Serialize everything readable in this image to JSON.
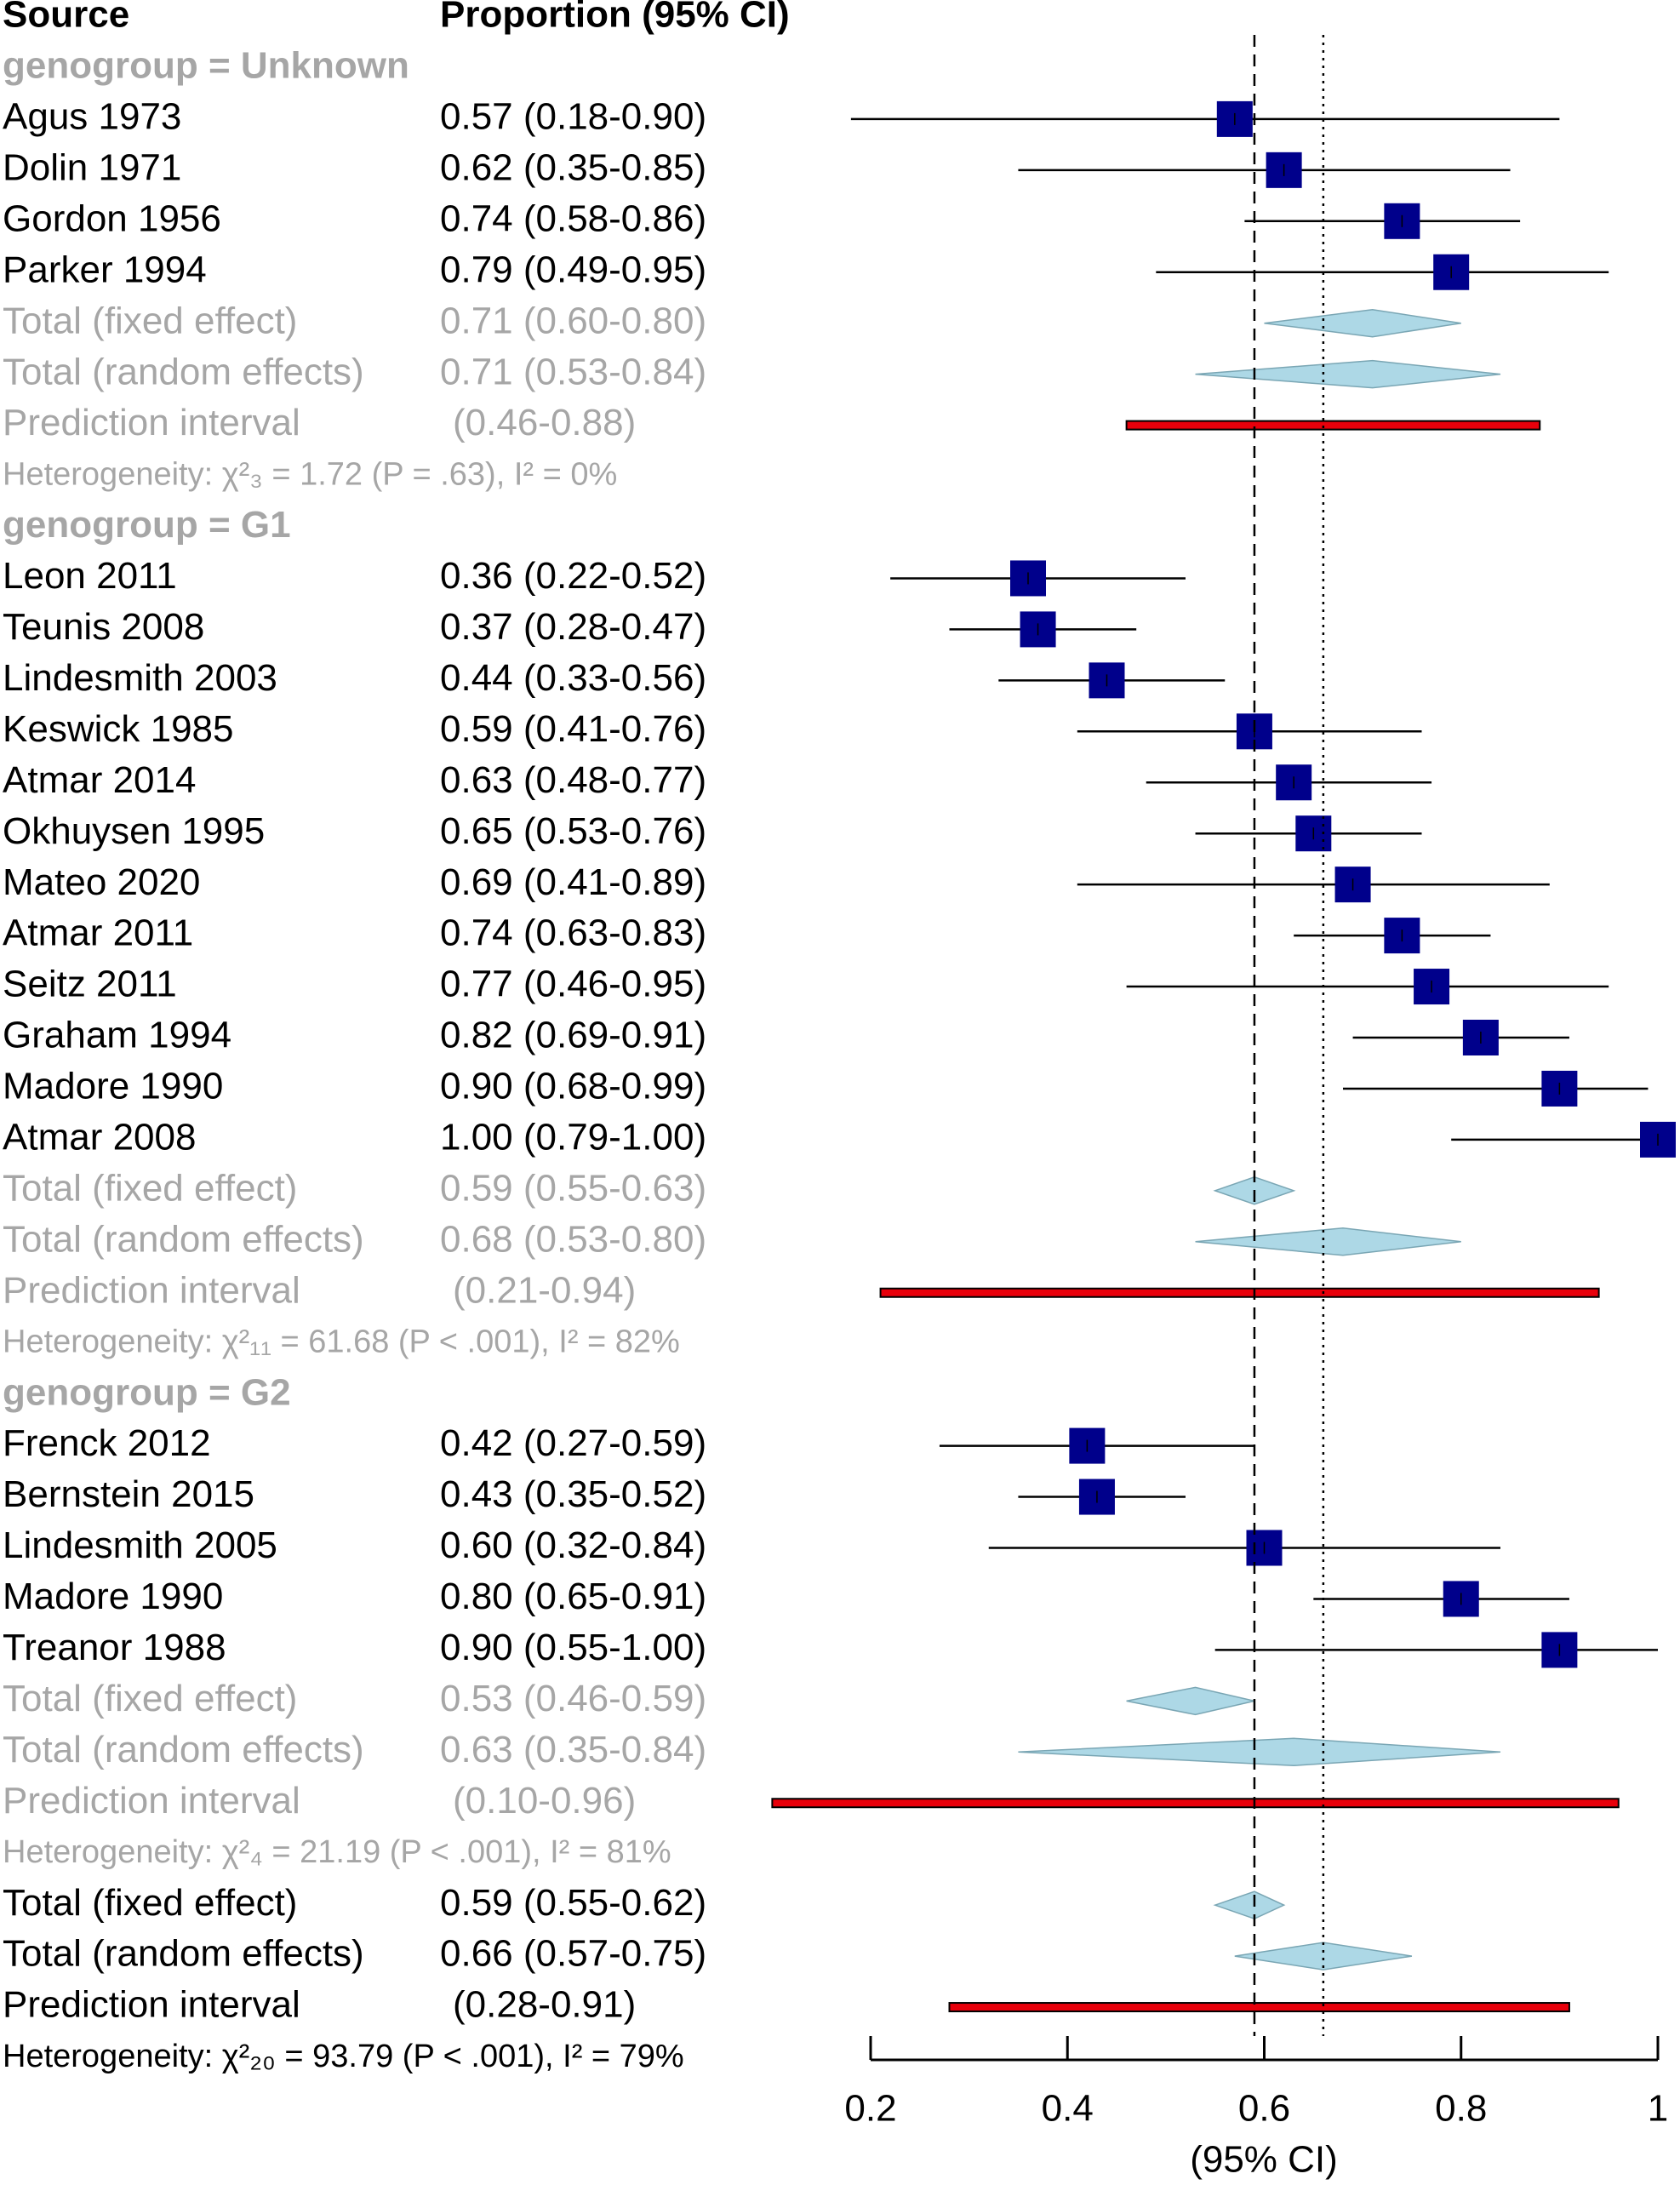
{
  "chart_data": {
    "type": "forest",
    "columns": [
      "Source",
      "Proportion (95% CI)"
    ],
    "axis_title": "(95% CI)",
    "xlim": [
      0.2,
      1
    ],
    "xticks": [
      0.2,
      0.4,
      0.6,
      0.8,
      1
    ],
    "square_color": "#00008b",
    "diamond_color": "#add8e6",
    "prediction_color": "#e8000b",
    "subgroup_text_color": "#a6a6a6",
    "groups": [
      {
        "label": "genogroup = Unknown",
        "studies": [
          {
            "name": "Agus 1973",
            "text": "0.57 (0.18-0.90)",
            "estimate": 0.57,
            "lower": 0.18,
            "upper": 0.9
          },
          {
            "name": "Dolin 1971",
            "text": "0.62 (0.35-0.85)",
            "estimate": 0.62,
            "lower": 0.35,
            "upper": 0.85
          },
          {
            "name": "Gordon 1956",
            "text": "0.74 (0.58-0.86)",
            "estimate": 0.74,
            "lower": 0.58,
            "upper": 0.86
          },
          {
            "name": "Parker 1994",
            "text": "0.79 (0.49-0.95)",
            "estimate": 0.79,
            "lower": 0.49,
            "upper": 0.95
          }
        ],
        "fixed": {
          "name": "Total (fixed effect)",
          "text": "0.71 (0.60-0.80)",
          "estimate": 0.71,
          "lower": 0.6,
          "upper": 0.8
        },
        "random": {
          "name": "Total (random effects)",
          "text": "0.71 (0.53-0.84)",
          "estimate": 0.71,
          "lower": 0.53,
          "upper": 0.84
        },
        "prediction": {
          "name": "Prediction interval",
          "text": "(0.46-0.88)",
          "lower": 0.46,
          "upper": 0.88
        },
        "heterogeneity": "Heterogeneity: χ²₃ = 1.72 (P = .63), I² = 0%"
      },
      {
        "label": "genogroup = G1",
        "studies": [
          {
            "name": "Leon 2011",
            "text": "0.36 (0.22-0.52)",
            "estimate": 0.36,
            "lower": 0.22,
            "upper": 0.52
          },
          {
            "name": "Teunis 2008",
            "text": "0.37 (0.28-0.47)",
            "estimate": 0.37,
            "lower": 0.28,
            "upper": 0.47
          },
          {
            "name": "Lindesmith 2003",
            "text": "0.44 (0.33-0.56)",
            "estimate": 0.44,
            "lower": 0.33,
            "upper": 0.56
          },
          {
            "name": "Keswick 1985",
            "text": "0.59 (0.41-0.76)",
            "estimate": 0.59,
            "lower": 0.41,
            "upper": 0.76
          },
          {
            "name": "Atmar 2014",
            "text": "0.63 (0.48-0.77)",
            "estimate": 0.63,
            "lower": 0.48,
            "upper": 0.77
          },
          {
            "name": "Okhuysen 1995",
            "text": "0.65 (0.53-0.76)",
            "estimate": 0.65,
            "lower": 0.53,
            "upper": 0.76
          },
          {
            "name": "Mateo 2020",
            "text": "0.69 (0.41-0.89)",
            "estimate": 0.69,
            "lower": 0.41,
            "upper": 0.89
          },
          {
            "name": "Atmar 2011",
            "text": "0.74 (0.63-0.83)",
            "estimate": 0.74,
            "lower": 0.63,
            "upper": 0.83
          },
          {
            "name": "Seitz 2011",
            "text": "0.77 (0.46-0.95)",
            "estimate": 0.77,
            "lower": 0.46,
            "upper": 0.95
          },
          {
            "name": "Graham 1994",
            "text": "0.82 (0.69-0.91)",
            "estimate": 0.82,
            "lower": 0.69,
            "upper": 0.91
          },
          {
            "name": "Madore 1990",
            "text": "0.90 (0.68-0.99)",
            "estimate": 0.9,
            "lower": 0.68,
            "upper": 0.99
          },
          {
            "name": "Atmar 2008",
            "text": "1.00 (0.79-1.00)",
            "estimate": 1.0,
            "lower": 0.79,
            "upper": 1.0
          }
        ],
        "fixed": {
          "name": "Total (fixed effect)",
          "text": "0.59 (0.55-0.63)",
          "estimate": 0.59,
          "lower": 0.55,
          "upper": 0.63
        },
        "random": {
          "name": "Total (random effects)",
          "text": "0.68 (0.53-0.80)",
          "estimate": 0.68,
          "lower": 0.53,
          "upper": 0.8
        },
        "prediction": {
          "name": "Prediction interval",
          "text": "(0.21-0.94)",
          "lower": 0.21,
          "upper": 0.94
        },
        "heterogeneity": "Heterogeneity: χ²₁₁ = 61.68 (P < .001), I² = 82%"
      },
      {
        "label": "genogroup = G2",
        "studies": [
          {
            "name": "Frenck 2012",
            "text": "0.42 (0.27-0.59)",
            "estimate": 0.42,
            "lower": 0.27,
            "upper": 0.59
          },
          {
            "name": "Bernstein 2015",
            "text": "0.43 (0.35-0.52)",
            "estimate": 0.43,
            "lower": 0.35,
            "upper": 0.52
          },
          {
            "name": "Lindesmith 2005",
            "text": "0.60 (0.32-0.84)",
            "estimate": 0.6,
            "lower": 0.32,
            "upper": 0.84
          },
          {
            "name": "Madore 1990",
            "text": "0.80 (0.65-0.91)",
            "estimate": 0.8,
            "lower": 0.65,
            "upper": 0.91
          },
          {
            "name": "Treanor 1988",
            "text": "0.90 (0.55-1.00)",
            "estimate": 0.9,
            "lower": 0.55,
            "upper": 1.0
          }
        ],
        "fixed": {
          "name": "Total (fixed effect)",
          "text": "0.53 (0.46-0.59)",
          "estimate": 0.53,
          "lower": 0.46,
          "upper": 0.59
        },
        "random": {
          "name": "Total (random effects)",
          "text": "0.63 (0.35-0.84)",
          "estimate": 0.63,
          "lower": 0.35,
          "upper": 0.84
        },
        "prediction": {
          "name": "Prediction interval",
          "text": "(0.10-0.96)",
          "lower": 0.1,
          "upper": 0.96
        },
        "heterogeneity": "Heterogeneity: χ²₄ = 21.19 (P < .001), I² = 81%"
      }
    ],
    "overall": {
      "fixed": {
        "name": "Total (fixed effect)",
        "text": "0.59 (0.55-0.62)",
        "estimate": 0.59,
        "lower": 0.55,
        "upper": 0.62
      },
      "random": {
        "name": "Total (random effects)",
        "text": "0.66 (0.57-0.75)",
        "estimate": 0.66,
        "lower": 0.57,
        "upper": 0.75
      },
      "prediction": {
        "name": "Prediction interval",
        "text": "(0.28-0.91)",
        "lower": 0.28,
        "upper": 0.91
      },
      "heterogeneity": "Heterogeneity: χ²₂₀ = 93.79 (P < .001), I² = 79%"
    }
  }
}
